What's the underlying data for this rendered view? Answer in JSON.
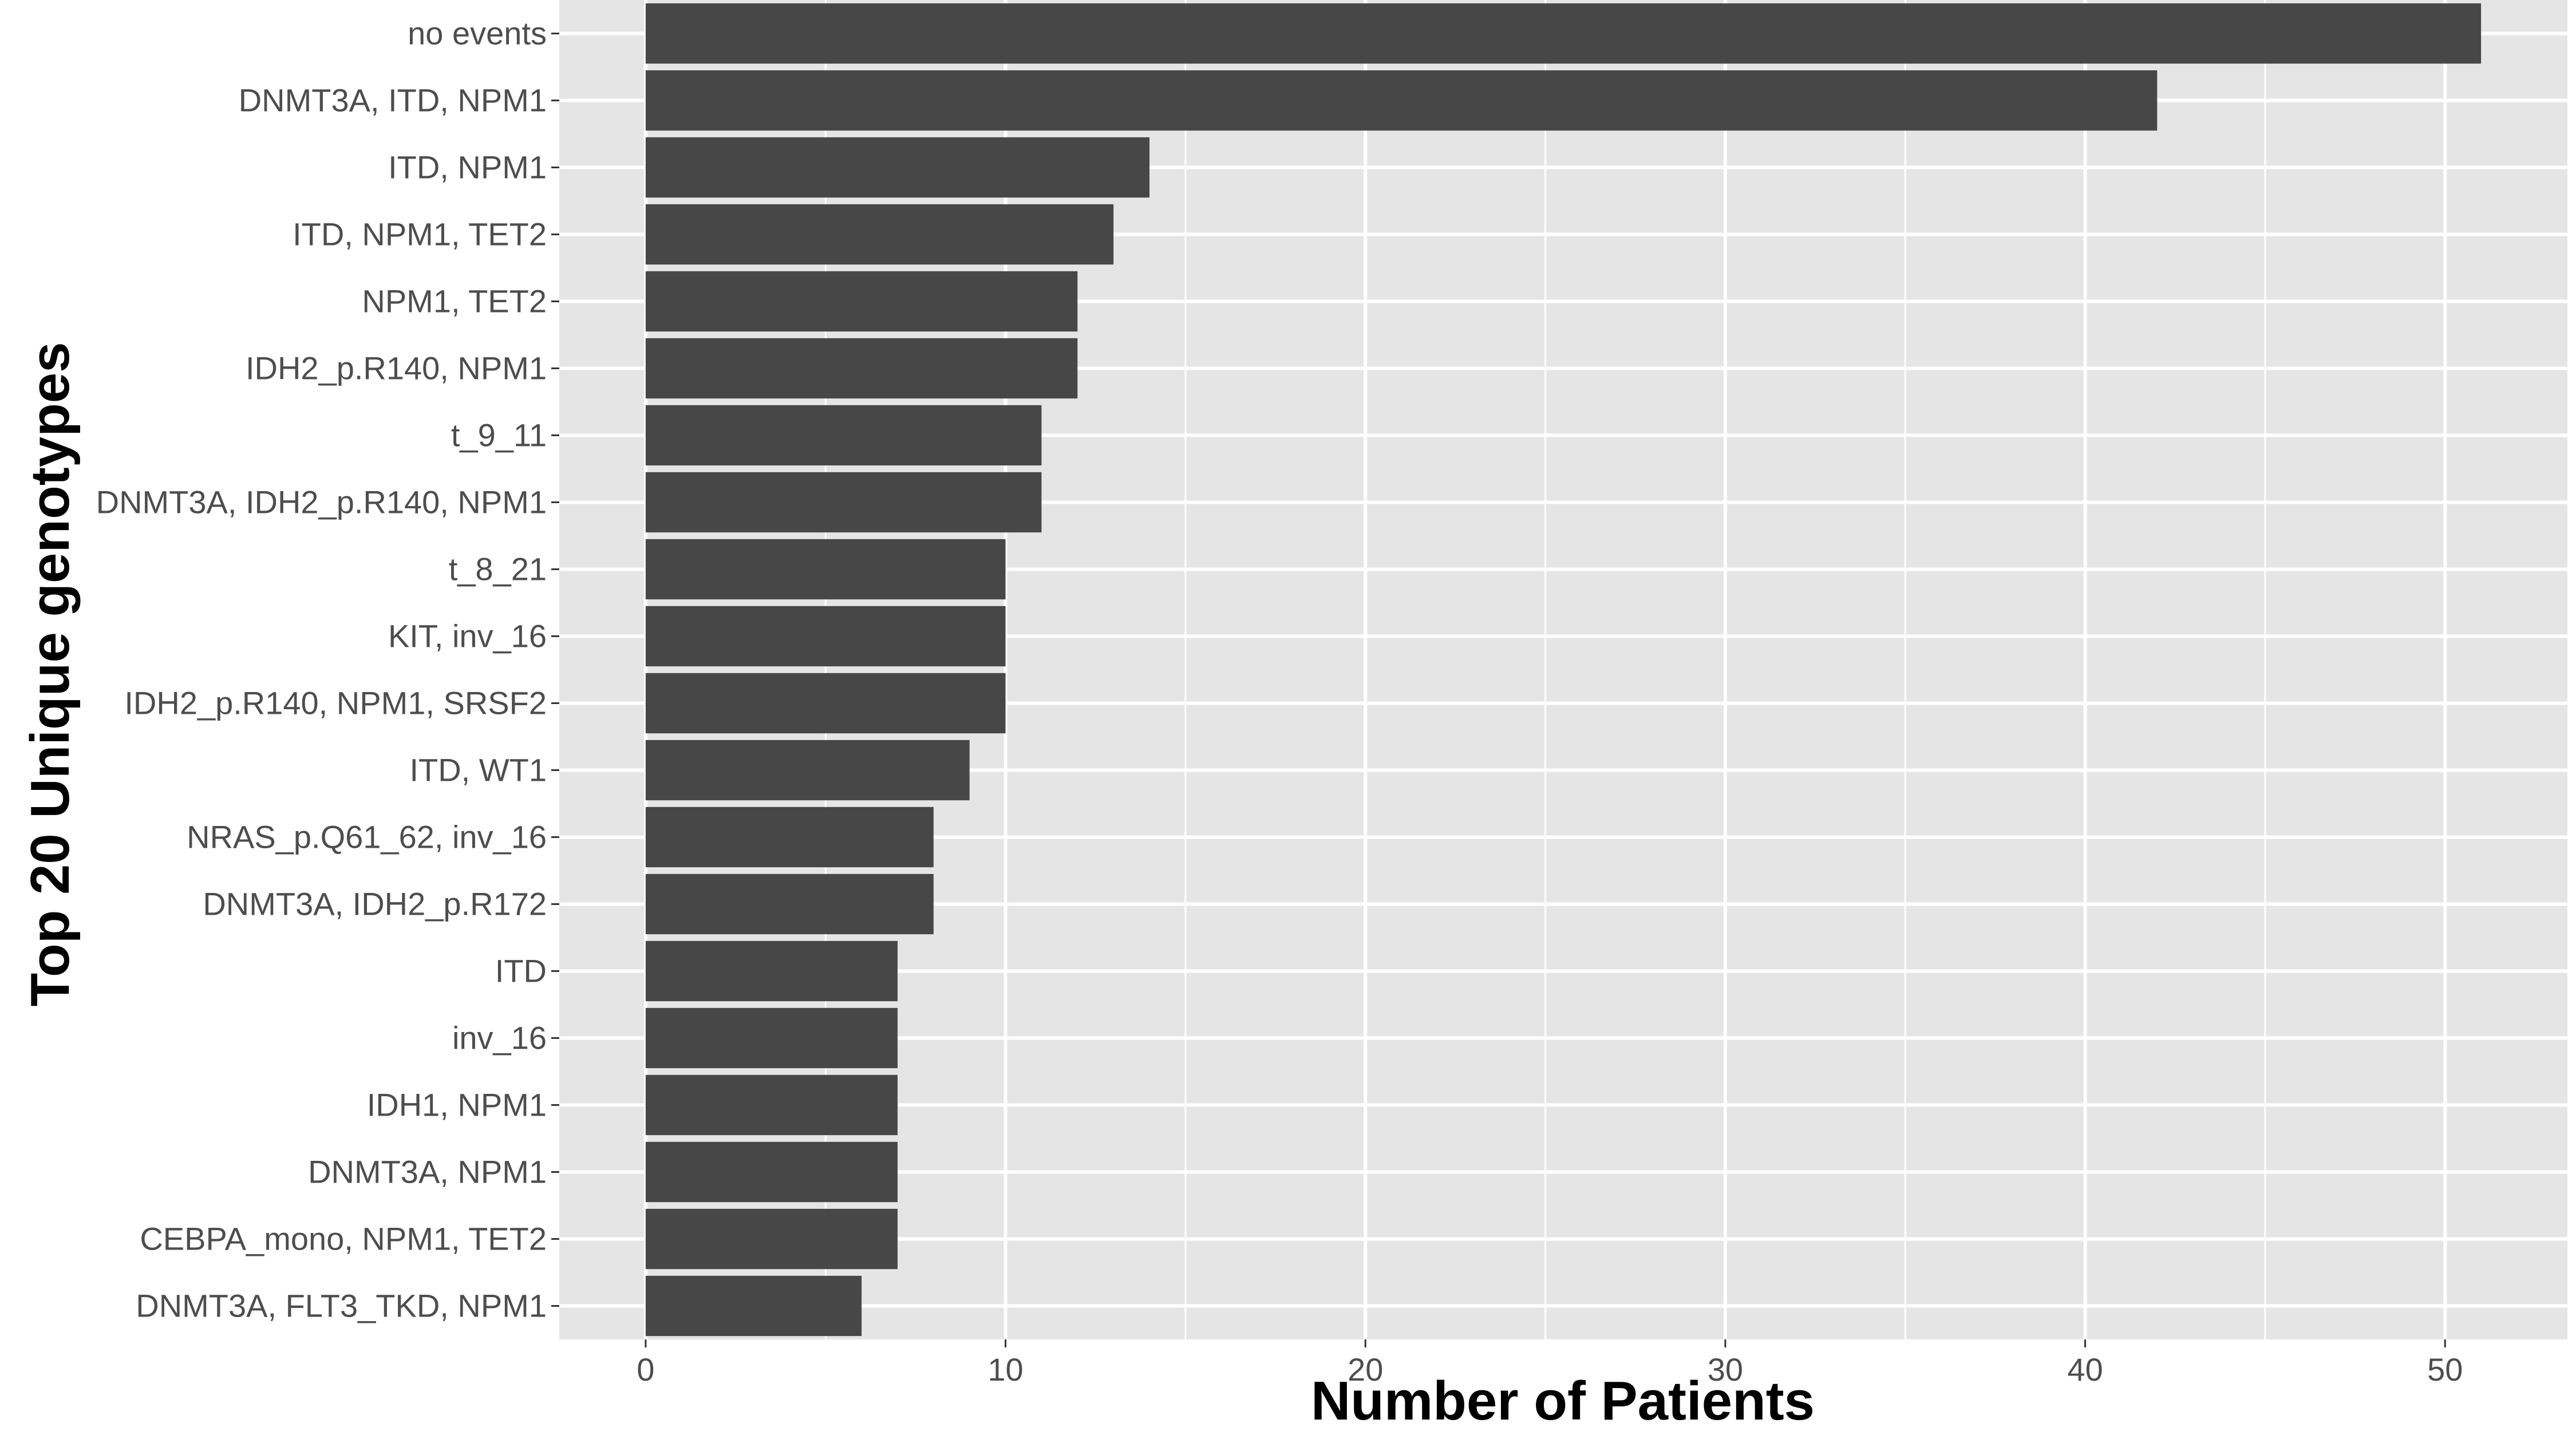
{
  "chart_data": {
    "type": "bar",
    "orientation": "horizontal",
    "title": "",
    "xlabel": "Number of Patients",
    "ylabel": "Top 20 Unique genotypes",
    "xlim": [
      -2.4,
      53.4
    ],
    "xticks": [
      0,
      10,
      20,
      30,
      40,
      50
    ],
    "grid": true,
    "legend": "none",
    "categories": [
      "no events",
      "DNMT3A, ITD, NPM1",
      "ITD, NPM1",
      "ITD, NPM1, TET2",
      "NPM1, TET2",
      "IDH2_p.R140, NPM1",
      "t_9_11",
      "DNMT3A, IDH2_p.R140, NPM1",
      "t_8_21",
      "KIT, inv_16",
      "IDH2_p.R140, NPM1, SRSF2",
      "ITD, WT1",
      "NRAS_p.Q61_62, inv_16",
      "DNMT3A, IDH2_p.R172",
      "ITD",
      "inv_16",
      "IDH1, NPM1",
      "DNMT3A, NPM1",
      "CEBPA_mono, NPM1, TET2",
      "DNMT3A, FLT3_TKD, NPM1"
    ],
    "values": [
      51,
      42,
      14,
      13,
      12,
      12,
      11,
      11,
      10,
      10,
      10,
      9,
      8,
      8,
      7,
      7,
      7,
      7,
      7,
      6
    ]
  },
  "colors": {
    "panel": "#e5e5e5",
    "grid": "#ffffff",
    "bar": "#474747",
    "tick_text": "#4d4d4d",
    "tick_mark": "#333333",
    "title_text": "#000000"
  }
}
